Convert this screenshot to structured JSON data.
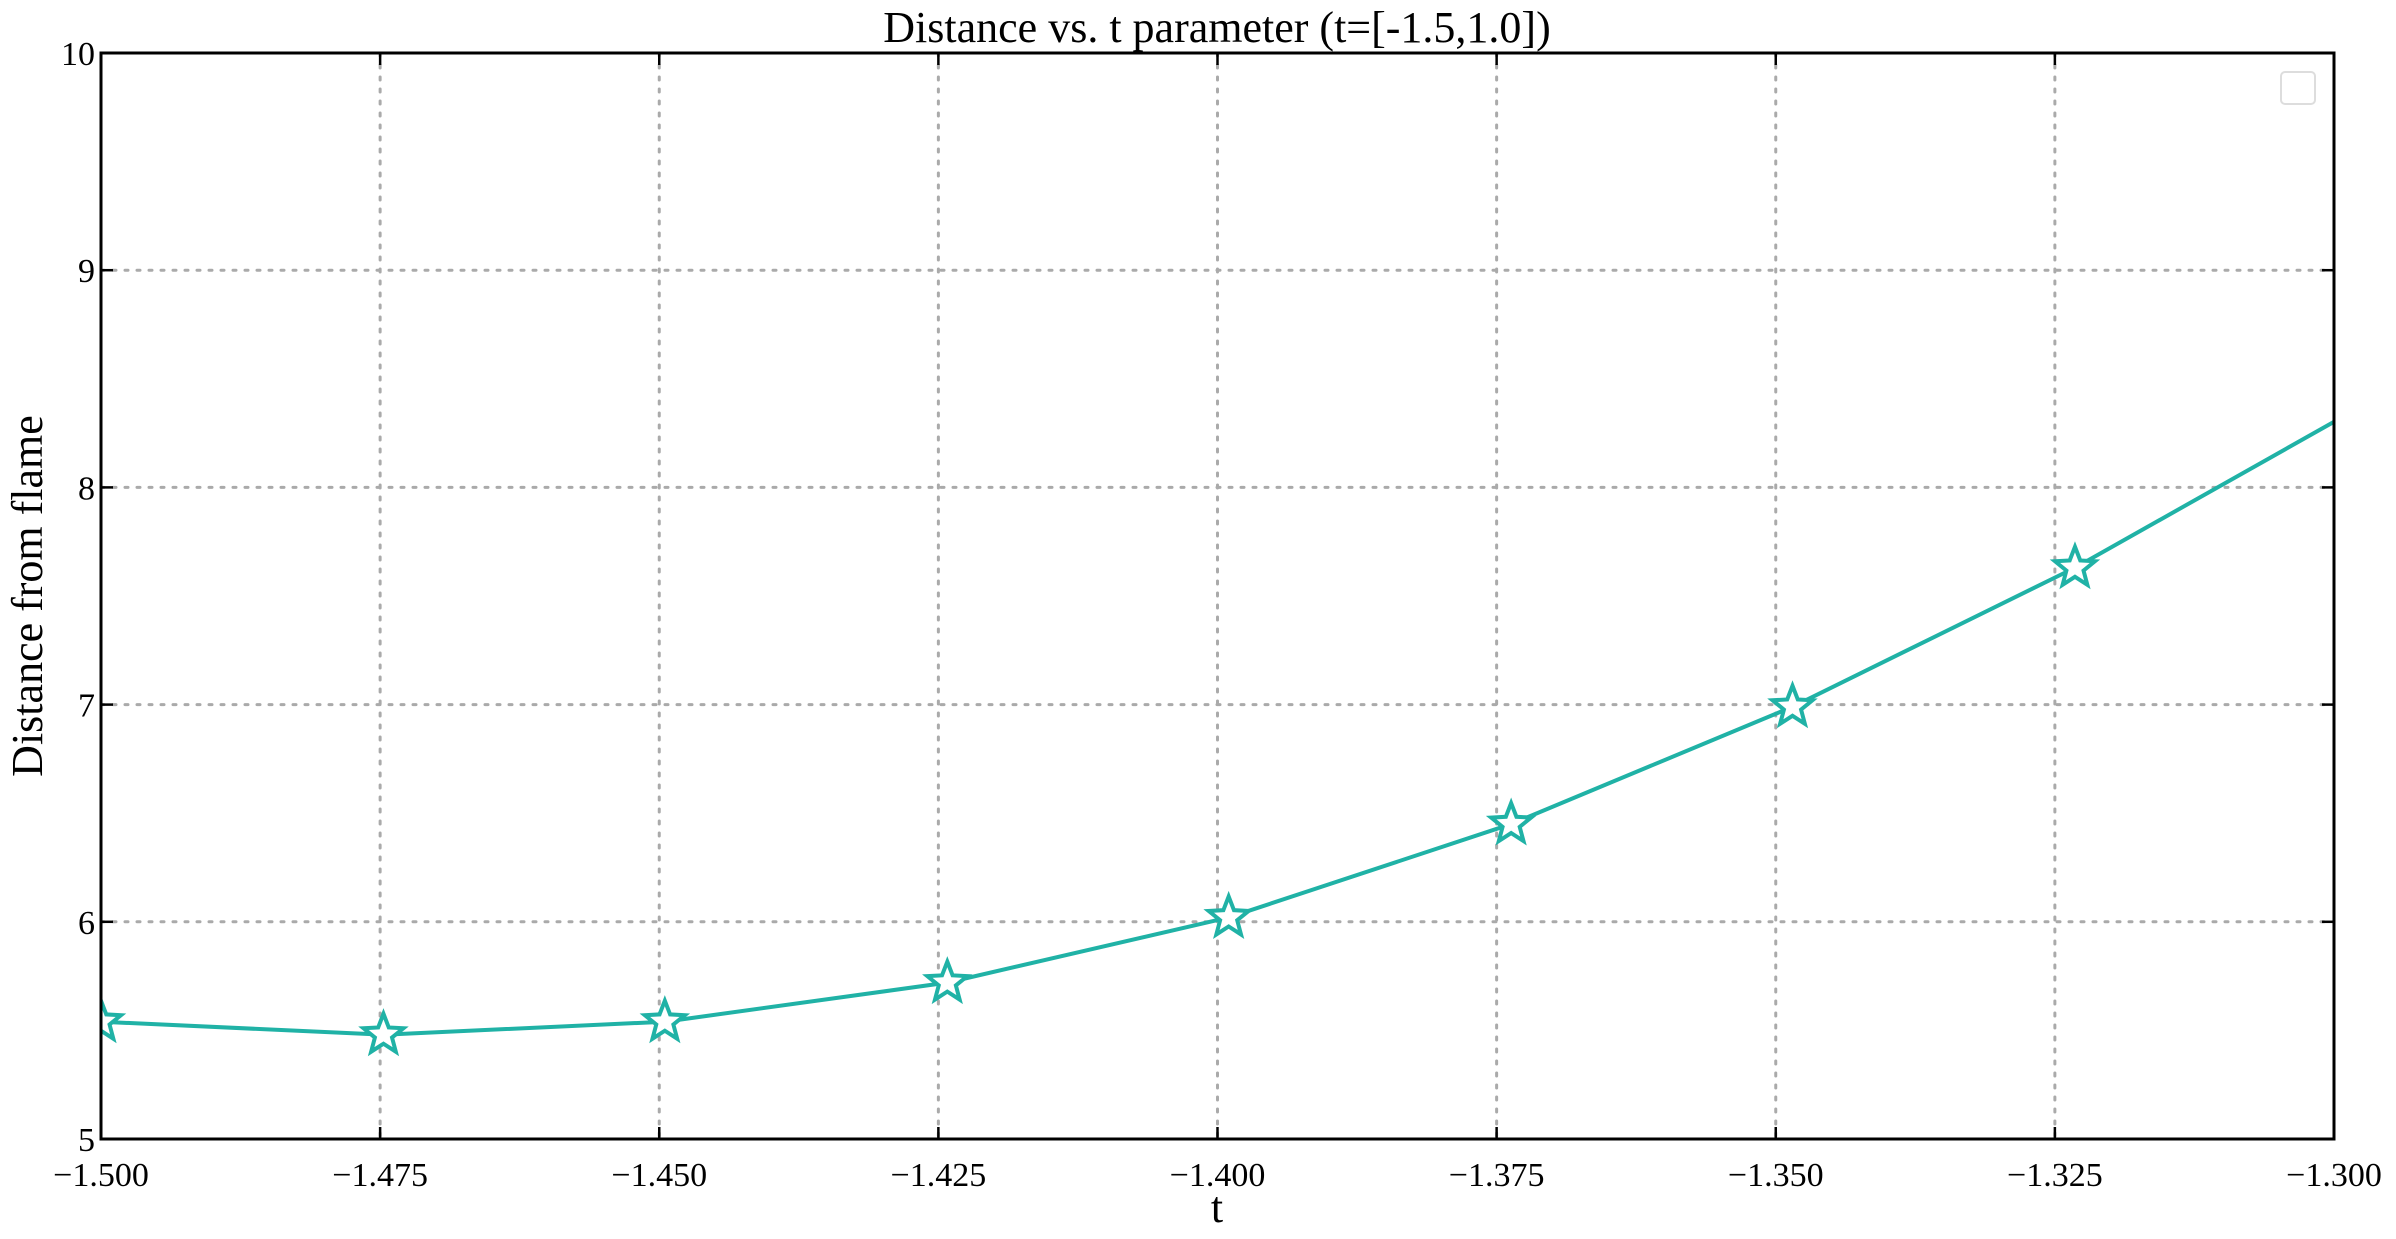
{
  "chart_data": {
    "type": "line",
    "title": "Distance vs. t parameter (t=[-1.5,1.0])",
    "xlabel": "t",
    "ylabel": "Distance from flame",
    "xlim": [
      -1.5,
      -1.3
    ],
    "ylim": [
      5,
      10
    ],
    "xticks": [
      -1.5,
      -1.475,
      -1.45,
      -1.425,
      -1.4,
      -1.375,
      -1.35,
      -1.325,
      -1.3
    ],
    "xtick_labels": [
      "−1.500",
      "−1.475",
      "−1.450",
      "−1.425",
      "−1.400",
      "−1.375",
      "−1.350",
      "−1.325",
      "−1.300"
    ],
    "yticks": [
      5,
      6,
      7,
      8,
      9,
      10
    ],
    "ytick_labels": [
      "5",
      "6",
      "7",
      "8",
      "9",
      "10"
    ],
    "grid": true,
    "legend": "top-right (empty)",
    "series": [
      {
        "color": "#20b2a6",
        "marker": "star-open",
        "line_x": [
          -1.5,
          -1.4747,
          -1.4495,
          -1.4242,
          -1.399,
          -1.3737,
          -1.3485,
          -1.3232,
          -1.298
        ],
        "line_y": [
          5.54,
          5.48,
          5.54,
          5.72,
          6.02,
          6.45,
          6.99,
          7.63,
          8.36
        ],
        "x": [
          -1.5,
          -1.4747,
          -1.4495,
          -1.4242,
          -1.399,
          -1.3737,
          -1.3485,
          -1.3232
        ],
        "y": [
          5.54,
          5.48,
          5.54,
          5.72,
          6.02,
          6.45,
          6.99,
          7.63
        ]
      }
    ]
  }
}
